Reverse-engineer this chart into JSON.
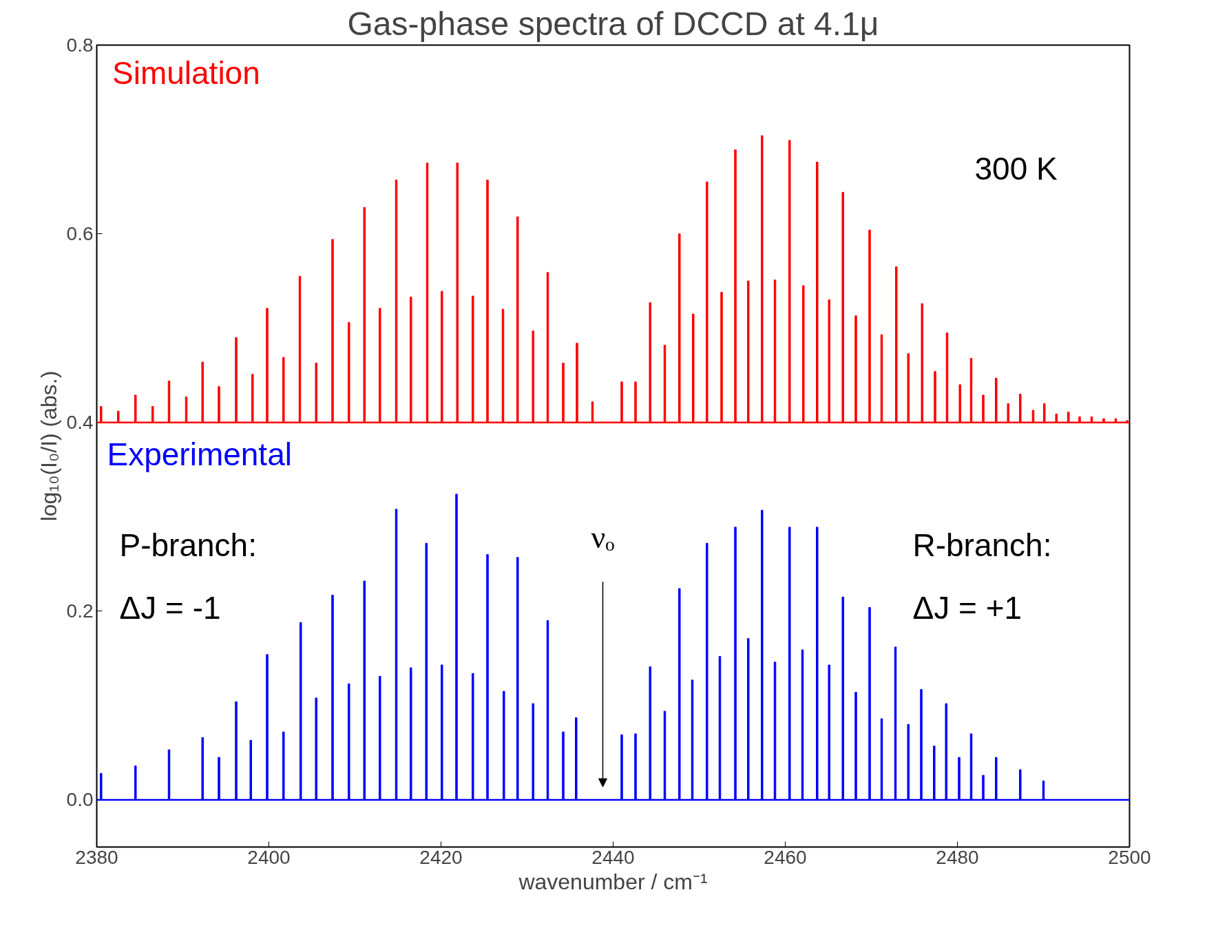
{
  "chart_data": {
    "type": "bar",
    "title": "Gas-phase spectra of DCCD at 4.1μ",
    "xlabel": "wavenumber / cm⁻¹",
    "ylabel": "log₁₀(I₀/I) (abs.)",
    "xlim": [
      2380,
      2500
    ],
    "ylim": [
      -0.05,
      0.8
    ],
    "xticks": [
      2380,
      2400,
      2420,
      2440,
      2460,
      2480,
      2500
    ],
    "yticks": [
      {
        "value": 0,
        "label": "0.0"
      },
      {
        "value": 0.2,
        "label": "0.2"
      },
      {
        "value": 0.4,
        "label": "0.4"
      },
      {
        "value": 0.6,
        "label": "0.6"
      },
      {
        "value": 0.8,
        "label": "0.8"
      }
    ],
    "grid": false,
    "series": [
      {
        "name": "Simulation",
        "color": "#ff0000",
        "x": [
          2380.5,
          2382.5,
          2384.5,
          2386.5,
          2388.4,
          2390.4,
          2392.3,
          2394.2,
          2396.2,
          2398.1,
          2399.8,
          2401.7,
          2403.6,
          2405.5,
          2407.4,
          2409.3,
          2411.1,
          2412.9,
          2414.8,
          2416.5,
          2418.4,
          2420.1,
          2421.9,
          2423.7,
          2425.4,
          2427.2,
          2428.9,
          2430.7,
          2432.4,
          2434.2,
          2435.8,
          2437.6,
          2441.0,
          2442.6,
          2444.3,
          2446.0,
          2447.7,
          2449.3,
          2450.9,
          2452.6,
          2454.2,
          2455.7,
          2457.3,
          2458.8,
          2460.5,
          2462.1,
          2463.7,
          2465.1,
          2466.7,
          2468.2,
          2469.8,
          2471.2,
          2472.9,
          2474.3,
          2475.9,
          2477.4,
          2478.8,
          2480.3,
          2481.6,
          2483.0,
          2484.5,
          2485.9,
          2487.3,
          2488.8,
          2490.1,
          2491.5,
          2492.9,
          2494.2,
          2495.6,
          2497.0,
          2498.4,
          2499.7
        ],
        "base": [
          0.4,
          0.4,
          0.4,
          0.4,
          0.4,
          0.4,
          0.4,
          0.4,
          0.4,
          0.4,
          0.4,
          0.4,
          0.4,
          0.4,
          0.4,
          0.4,
          0.4,
          0.4,
          0.4,
          0.4,
          0.4,
          0.4,
          0.4,
          0.4,
          0.4,
          0.4,
          0.4,
          0.4,
          0.4,
          0.4,
          0.4,
          0.4,
          0.4,
          0.4,
          0.4,
          0.4,
          0.4,
          0.4,
          0.4,
          0.4,
          0.4,
          0.4,
          0.4,
          0.4,
          0.4,
          0.4,
          0.4,
          0.4,
          0.4,
          0.4,
          0.4,
          0.4,
          0.4,
          0.4,
          0.4,
          0.4,
          0.4,
          0.4,
          0.4,
          0.4,
          0.4,
          0.4,
          0.4,
          0.4,
          0.4,
          0.4,
          0.4,
          0.4,
          0.4,
          0.4,
          0.4,
          0.4
        ],
        "values": [
          0.017,
          0.012,
          0.029,
          0.017,
          0.044,
          0.027,
          0.064,
          0.038,
          0.09,
          0.051,
          0.121,
          0.069,
          0.155,
          0.063,
          0.194,
          0.106,
          0.228,
          0.121,
          0.257,
          0.133,
          0.275,
          0.139,
          0.275,
          0.134,
          0.257,
          0.12,
          0.218,
          0.097,
          0.159,
          0.063,
          0.084,
          0.022,
          0.043,
          0.043,
          0.127,
          0.082,
          0.2,
          0.115,
          0.255,
          0.138,
          0.289,
          0.15,
          0.304,
          0.151,
          0.299,
          0.145,
          0.276,
          0.13,
          0.244,
          0.113,
          0.204,
          0.093,
          0.165,
          0.073,
          0.126,
          0.054,
          0.095,
          0.04,
          0.068,
          0.029,
          0.047,
          0.02,
          0.03,
          0.013,
          0.02,
          0.009,
          0.011,
          0.006,
          0.006,
          0.004,
          0.004,
          0.002
        ]
      },
      {
        "name": "Experimental",
        "color": "#0000ff",
        "x": [
          2380.5,
          2384.5,
          2388.4,
          2392.3,
          2394.2,
          2396.2,
          2397.9,
          2399.8,
          2401.7,
          2403.7,
          2405.5,
          2407.4,
          2409.3,
          2411.1,
          2412.9,
          2414.8,
          2416.5,
          2418.3,
          2420.1,
          2421.8,
          2423.7,
          2425.4,
          2427.3,
          2428.9,
          2430.7,
          2432.4,
          2434.2,
          2435.7,
          2441.0,
          2442.6,
          2444.3,
          2446.0,
          2447.7,
          2449.2,
          2450.9,
          2452.4,
          2454.2,
          2455.7,
          2457.3,
          2458.8,
          2460.5,
          2462.0,
          2463.7,
          2465.1,
          2466.7,
          2468.2,
          2469.8,
          2471.2,
          2472.8,
          2474.3,
          2475.8,
          2477.3,
          2478.7,
          2480.2,
          2481.6,
          2483.0,
          2484.5,
          2487.3,
          2490.0
        ],
        "values": [
          0.028,
          0.036,
          0.053,
          0.066,
          0.045,
          0.104,
          0.063,
          0.154,
          0.072,
          0.188,
          0.108,
          0.217,
          0.123,
          0.232,
          0.131,
          0.308,
          0.14,
          0.272,
          0.143,
          0.324,
          0.134,
          0.26,
          0.115,
          0.257,
          0.102,
          0.19,
          0.072,
          0.087,
          0.069,
          0.07,
          0.141,
          0.094,
          0.224,
          0.127,
          0.272,
          0.152,
          0.289,
          0.171,
          0.307,
          0.146,
          0.289,
          0.159,
          0.289,
          0.143,
          0.215,
          0.114,
          0.204,
          0.086,
          0.162,
          0.08,
          0.117,
          0.057,
          0.102,
          0.045,
          0.07,
          0.026,
          0.045,
          0.032,
          0.02
        ]
      }
    ],
    "ref_lines": [
      {
        "axis": "y",
        "value": 0.4,
        "color": "#ff0000"
      },
      {
        "axis": "y",
        "value": 0,
        "color": "#0000ff"
      }
    ],
    "annotations": [
      "300 K",
      "P-branch:",
      "ΔJ = -1",
      "R-branch:",
      "ΔJ = +1",
      "νₒ"
    ]
  }
}
